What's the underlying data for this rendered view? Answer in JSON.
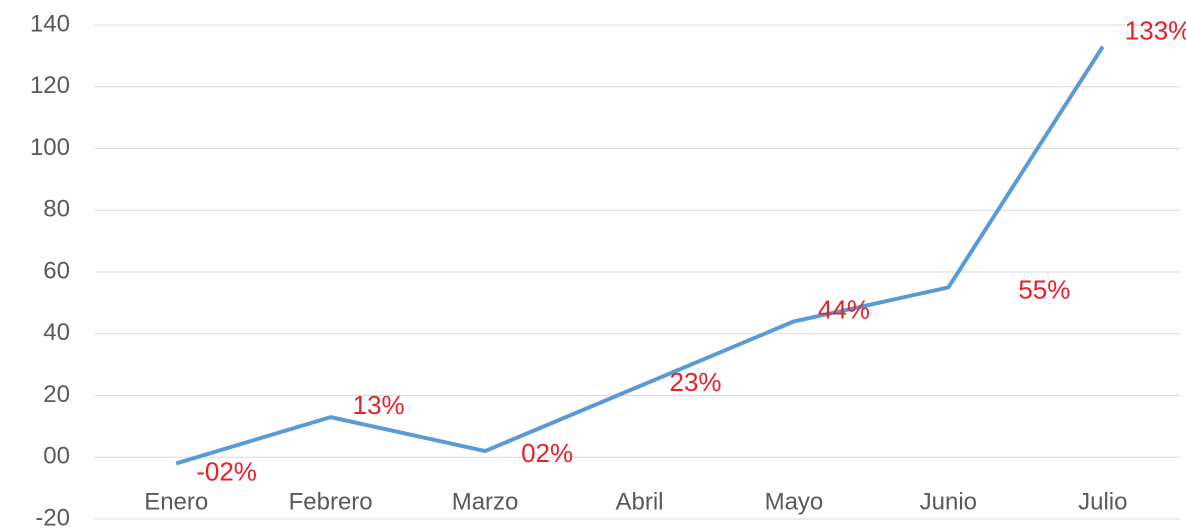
{
  "chart_data": {
    "type": "line",
    "categories": [
      "Enero",
      "Febrero",
      "Marzo",
      "Abril",
      "Mayo",
      "Junio",
      "Julio"
    ],
    "series": [
      {
        "color": "#5b9bd5",
        "label_color": "#e8202a",
        "values": [
          -2,
          13,
          2,
          23,
          44,
          55,
          133
        ],
        "value_labels": [
          "-02%",
          "13%",
          "02%",
          "23%",
          "44%",
          "55%",
          "133%"
        ]
      }
    ],
    "ylim": [
      -20,
      140
    ],
    "yticks": [
      -20,
      {
        "value": 0,
        "label": "00"
      },
      20,
      40,
      60,
      80,
      100,
      120,
      140
    ],
    "grid": true
  }
}
